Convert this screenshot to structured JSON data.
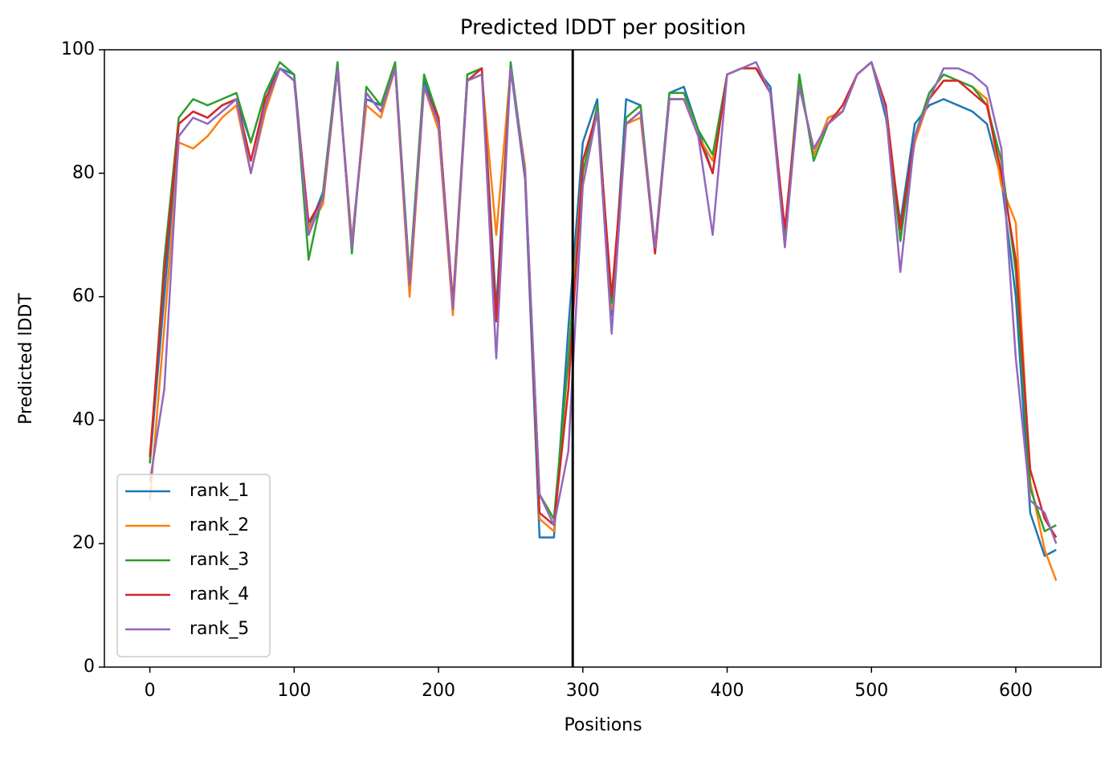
{
  "chart_data": {
    "type": "line",
    "title": "Predicted lDDT per position",
    "x_label": "Positions",
    "y_label": "Predicted lDDT",
    "x": [
      0,
      10,
      20,
      30,
      40,
      50,
      60,
      70,
      80,
      90,
      100,
      110,
      120,
      130,
      140,
      150,
      160,
      170,
      180,
      190,
      200,
      210,
      220,
      230,
      240,
      250,
      260,
      270,
      280,
      290,
      300,
      310,
      320,
      330,
      340,
      350,
      360,
      370,
      380,
      390,
      400,
      410,
      420,
      430,
      440,
      450,
      460,
      470,
      480,
      490,
      500,
      510,
      520,
      530,
      540,
      550,
      560,
      570,
      580,
      590,
      600,
      610,
      620,
      628
    ],
    "series": [
      {
        "name": "rank_1",
        "color": "#1f77b4",
        "values": [
          33,
          60,
          88,
          90,
          89,
          91,
          92,
          85,
          93,
          97,
          96,
          71,
          77,
          97,
          69,
          92,
          91,
          97,
          63,
          95,
          89,
          58,
          96,
          97,
          58,
          97,
          79,
          21,
          21,
          55,
          85,
          92,
          57,
          92,
          91,
          67,
          93,
          94,
          87,
          80,
          96,
          97,
          97,
          94,
          70,
          95,
          83,
          89,
          90,
          96,
          98,
          89,
          72,
          88,
          91,
          92,
          91,
          90,
          88,
          79,
          60,
          25,
          18,
          19
        ]
      },
      {
        "name": "rank_2",
        "color": "#ff7f0e",
        "values": [
          27,
          55,
          85,
          84,
          86,
          89,
          91,
          80,
          90,
          97,
          95,
          71,
          75,
          97,
          69,
          91,
          89,
          97,
          60,
          94,
          87,
          57,
          95,
          96,
          70,
          97,
          81,
          24,
          22,
          50,
          82,
          90,
          58,
          88,
          89,
          68,
          92,
          92,
          86,
          82,
          96,
          97,
          97,
          93,
          70,
          95,
          83,
          89,
          90,
          96,
          98,
          90,
          70,
          85,
          92,
          95,
          95,
          94,
          92,
          78,
          72,
          30,
          19,
          14
        ]
      },
      {
        "name": "rank_3",
        "color": "#2ca02c",
        "values": [
          33,
          66,
          89,
          92,
          91,
          92,
          93,
          85,
          93,
          98,
          96,
          66,
          77,
          98,
          67,
          94,
          91,
          98,
          63,
          96,
          89,
          59,
          96,
          97,
          56,
          98,
          80,
          28,
          24,
          50,
          80,
          91,
          59,
          89,
          91,
          68,
          93,
          93,
          87,
          83,
          96,
          97,
          97,
          93,
          70,
          96,
          82,
          88,
          90,
          96,
          98,
          90,
          69,
          86,
          93,
          96,
          95,
          94,
          91,
          82,
          64,
          29,
          22,
          23
        ]
      },
      {
        "name": "rank_4",
        "color": "#d62728",
        "values": [
          34,
          64,
          88,
          90,
          89,
          91,
          92,
          82,
          92,
          97,
          95,
          72,
          76,
          97,
          68,
          93,
          90,
          97,
          62,
          94,
          89,
          59,
          95,
          97,
          56,
          97,
          80,
          25,
          23,
          45,
          82,
          90,
          60,
          88,
          90,
          67,
          92,
          92,
          86,
          80,
          96,
          97,
          97,
          93,
          71,
          94,
          84,
          88,
          91,
          96,
          98,
          91,
          71,
          86,
          92,
          95,
          95,
          93,
          91,
          80,
          66,
          32,
          24,
          21
        ]
      },
      {
        "name": "rank_5",
        "color": "#9467bd",
        "values": [
          30,
          45,
          86,
          89,
          88,
          90,
          92,
          80,
          91,
          97,
          95,
          70,
          76,
          97,
          68,
          93,
          90,
          97,
          62,
          94,
          88,
          58,
          95,
          96,
          50,
          97,
          80,
          28,
          23,
          35,
          78,
          90,
          54,
          88,
          90,
          68,
          92,
          92,
          86,
          70,
          96,
          97,
          98,
          93,
          68,
          94,
          84,
          88,
          90,
          96,
          98,
          90,
          64,
          86,
          92,
          97,
          97,
          96,
          94,
          84,
          50,
          27,
          25,
          20
        ]
      }
    ],
    "vline": 293,
    "vline_color": "#000000",
    "xlim": [
      -31.5,
      659
    ],
    "xticks": [
      0,
      100,
      200,
      300,
      400,
      500,
      600
    ],
    "ylim": [
      0,
      100
    ],
    "yticks": [
      0,
      20,
      40,
      60,
      80,
      100
    ],
    "legend": "lower left"
  }
}
